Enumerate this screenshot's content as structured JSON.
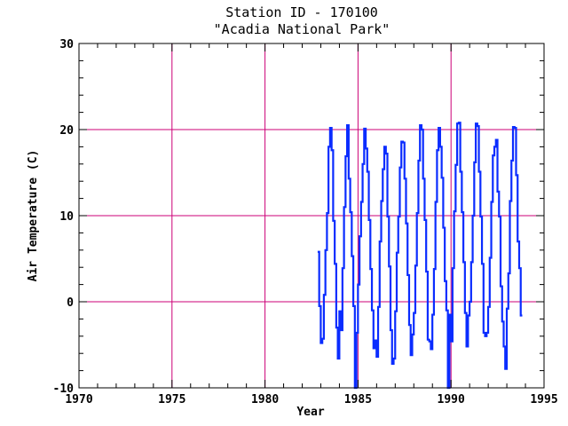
{
  "chart_data": {
    "type": "line",
    "title": "Station ID - 170100",
    "subtitle": "\"Acadia National Park\"",
    "xlabel": "Year",
    "ylabel": "Air Temperature (C)",
    "xlim": [
      1970,
      1995
    ],
    "ylim": [
      -10,
      30
    ],
    "xticks": [
      1970,
      1975,
      1980,
      1985,
      1990,
      1995
    ],
    "yticks": [
      -10,
      0,
      10,
      20,
      30
    ],
    "grid_x": [
      1975,
      1980,
      1985,
      1990
    ],
    "grid_y": [
      0,
      10,
      20
    ],
    "grid": true,
    "colors": {
      "series": "#0a2cff",
      "grid": "#cc0077",
      "axis": "#000000"
    },
    "series": [
      {
        "monthly_start_year": 1982.83,
        "values": [
          5.8,
          -0.5,
          -4.8,
          -4.3,
          0.8,
          6.0,
          10.3,
          18.0,
          20.2,
          17.6,
          9.4,
          4.4,
          -3.0,
          -6.6,
          -1.1,
          -3.3,
          3.9,
          11.0,
          16.9,
          20.5,
          14.3,
          10.4,
          5.3,
          -0.5,
          -10.0,
          -3.6,
          2.0,
          7.6,
          11.6,
          16.0,
          20.1,
          17.8,
          15.1,
          9.5,
          3.8,
          -1.0,
          -5.4,
          -4.5,
          -6.4,
          -0.6,
          7.0,
          11.7,
          15.4,
          18.0,
          17.2,
          9.9,
          4.1,
          -3.3,
          -7.2,
          -6.6,
          -1.1,
          5.7,
          9.9,
          15.6,
          18.6,
          18.5,
          14.3,
          9.1,
          3.1,
          -2.7,
          -6.2,
          -3.8,
          -1.3,
          4.2,
          10.3,
          16.4,
          20.5,
          20.0,
          14.3,
          9.5,
          3.5,
          -4.4,
          -4.6,
          -5.5,
          -1.5,
          3.8,
          11.6,
          17.6,
          20.2,
          18.0,
          14.4,
          8.6,
          2.4,
          -1.0,
          -10.0,
          -1.5,
          -4.6,
          3.9,
          10.5,
          15.9,
          20.7,
          20.8,
          15.1,
          10.4,
          4.6,
          -1.3,
          -5.2,
          -1.6,
          0.0,
          4.6,
          10.0,
          16.2,
          20.7,
          20.4,
          15.1,
          9.9,
          4.4,
          -3.6,
          -4.0,
          -3.6,
          -0.6,
          5.1,
          11.6,
          17.0,
          18.0,
          18.8,
          12.8,
          9.9,
          1.8,
          -2.3,
          -5.2,
          -7.8,
          -0.8,
          3.3,
          11.7,
          16.4,
          20.3,
          20.2,
          14.7,
          7.0,
          3.9,
          -1.6
        ]
      }
    ]
  }
}
